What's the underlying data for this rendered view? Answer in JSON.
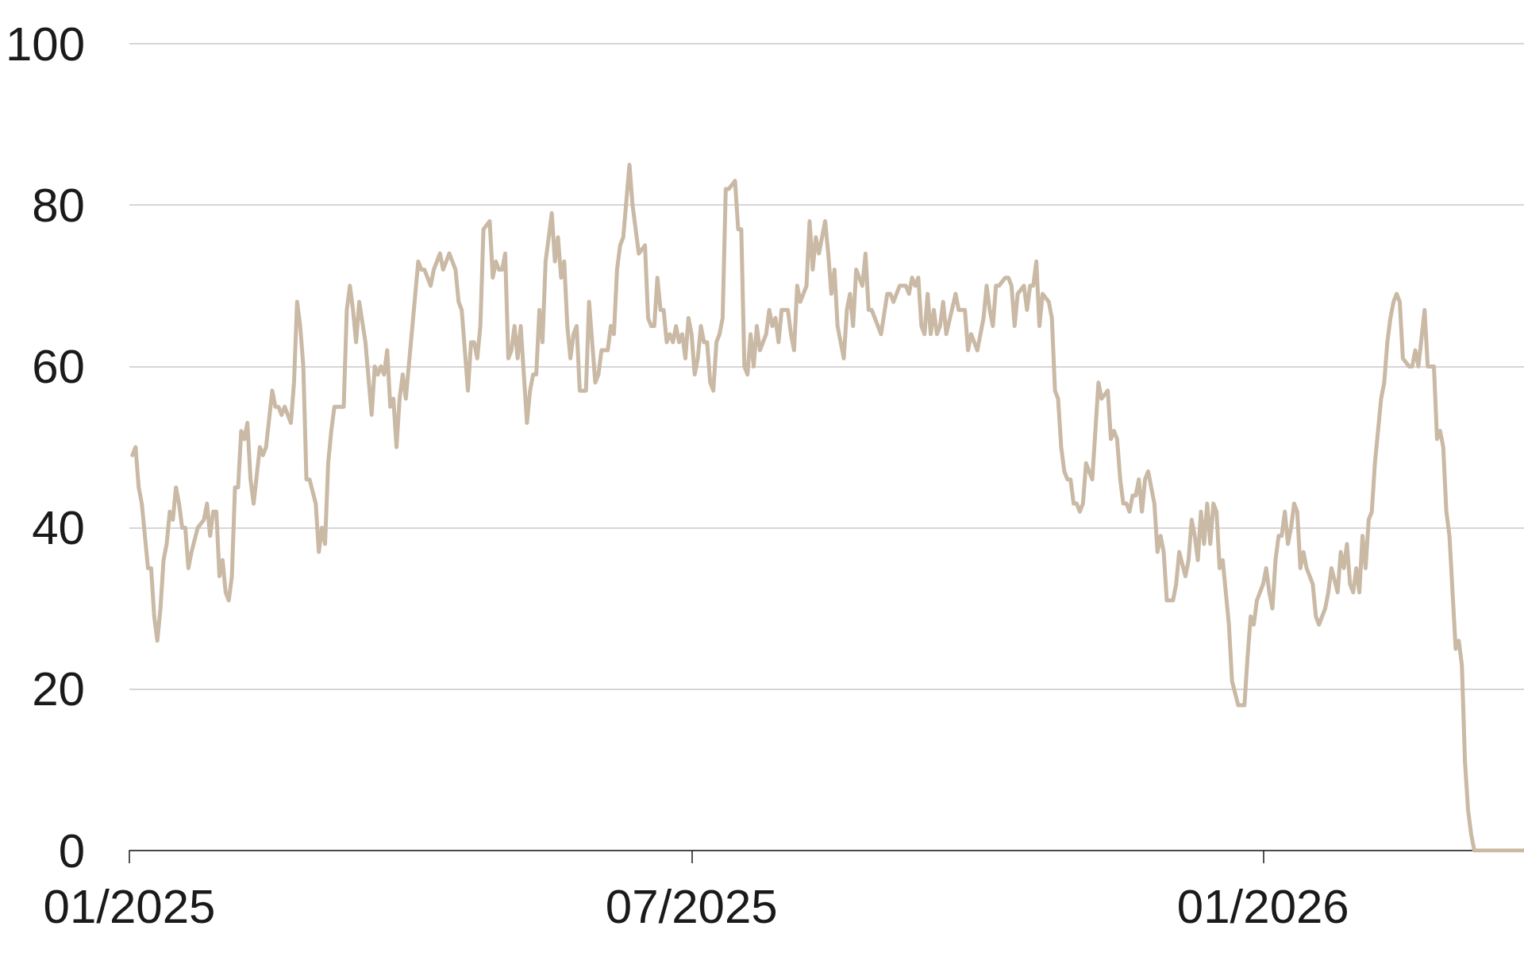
{
  "chart_data": {
    "type": "line",
    "color": "#c9b9a5",
    "x": [
      "2025-01-02",
      "2025-01-03",
      "2025-01-04",
      "2025-01-05",
      "2025-01-07",
      "2025-01-08",
      "2025-01-09",
      "2025-01-10",
      "2025-01-11",
      "2025-01-12",
      "2025-01-13",
      "2025-01-14",
      "2025-01-15",
      "2025-01-16",
      "2025-01-17",
      "2025-01-18",
      "2025-01-19",
      "2025-01-20",
      "2025-01-21",
      "2025-01-23",
      "2025-01-25",
      "2025-01-26",
      "2025-01-27",
      "2025-01-28",
      "2025-01-29",
      "2025-01-30",
      "2025-01-31",
      "2025-02-01",
      "2025-02-02",
      "2025-02-03",
      "2025-02-04",
      "2025-02-05",
      "2025-02-06",
      "2025-02-07",
      "2025-02-08",
      "2025-02-09",
      "2025-02-10",
      "2025-02-12",
      "2025-02-13",
      "2025-02-14",
      "2025-02-16",
      "2025-02-17",
      "2025-02-18",
      "2025-02-19",
      "2025-02-20",
      "2025-02-22",
      "2025-02-23",
      "2025-02-24",
      "2025-02-25",
      "2025-02-26",
      "2025-02-27",
      "2025-02-28",
      "2025-03-02",
      "2025-03-03",
      "2025-03-04",
      "2025-03-05",
      "2025-03-06",
      "2025-03-07",
      "2025-03-08",
      "2025-03-11",
      "2025-03-12",
      "2025-03-13",
      "2025-03-14",
      "2025-03-15",
      "2025-03-16",
      "2025-03-18",
      "2025-03-20",
      "2025-03-21",
      "2025-03-22",
      "2025-03-23",
      "2025-03-24",
      "2025-03-25",
      "2025-03-26",
      "2025-03-27",
      "2025-03-28",
      "2025-03-29",
      "2025-03-30",
      "2025-03-31",
      "2025-04-04",
      "2025-04-05",
      "2025-04-06",
      "2025-04-08",
      "2025-04-09",
      "2025-04-11",
      "2025-04-12",
      "2025-04-14",
      "2025-04-15",
      "2025-04-16",
      "2025-04-17",
      "2025-04-18",
      "2025-04-19",
      "2025-04-20",
      "2025-04-21",
      "2025-04-22",
      "2025-04-23",
      "2025-04-24",
      "2025-04-25",
      "2025-04-27",
      "2025-04-28",
      "2025-04-29",
      "2025-04-30",
      "2025-05-01",
      "2025-05-02",
      "2025-05-03",
      "2025-05-04",
      "2025-05-05",
      "2025-05-06",
      "2025-05-07",
      "2025-05-08",
      "2025-05-09",
      "2025-05-10",
      "2025-05-11",
      "2025-05-12",
      "2025-05-13",
      "2025-05-14",
      "2025-05-15",
      "2025-05-17",
      "2025-05-18",
      "2025-05-19",
      "2025-05-20",
      "2025-05-21",
      "2025-05-22",
      "2025-05-23",
      "2025-05-24",
      "2025-05-25",
      "2025-05-26",
      "2025-05-28",
      "2025-05-29",
      "2025-05-31",
      "2025-06-01",
      "2025-06-02",
      "2025-06-04",
      "2025-06-05",
      "2025-06-06",
      "2025-06-07",
      "2025-06-08",
      "2025-06-09",
      "2025-06-11",
      "2025-06-12",
      "2025-06-13",
      "2025-06-14",
      "2025-06-16",
      "2025-06-17",
      "2025-06-18",
      "2025-06-19",
      "2025-06-20",
      "2025-06-21",
      "2025-06-22",
      "2025-06-23",
      "2025-06-24",
      "2025-06-25",
      "2025-06-26",
      "2025-06-27",
      "2025-06-28",
      "2025-06-29",
      "2025-06-30",
      "2025-07-01",
      "2025-07-02",
      "2025-07-03",
      "2025-07-04",
      "2025-07-05",
      "2025-07-06",
      "2025-07-07",
      "2025-07-08",
      "2025-07-09",
      "2025-07-10",
      "2025-07-11",
      "2025-07-12",
      "2025-07-13",
      "2025-07-15",
      "2025-07-16",
      "2025-07-17",
      "2025-07-18",
      "2025-07-19",
      "2025-07-20",
      "2025-07-21",
      "2025-07-22",
      "2025-07-23",
      "2025-07-25",
      "2025-07-26",
      "2025-07-27",
      "2025-07-28",
      "2025-07-29",
      "2025-07-30",
      "2025-08-01",
      "2025-08-02",
      "2025-08-03",
      "2025-08-04",
      "2025-08-05",
      "2025-08-07",
      "2025-08-08",
      "2025-08-09",
      "2025-08-10",
      "2025-08-11",
      "2025-08-13",
      "2025-08-14",
      "2025-08-15",
      "2025-08-16",
      "2025-08-17",
      "2025-08-19",
      "2025-08-20",
      "2025-08-21",
      "2025-08-22",
      "2025-08-23",
      "2025-08-25",
      "2025-08-26",
      "2025-08-27",
      "2025-08-28",
      "2025-08-31",
      "2025-09-02",
      "2025-09-03",
      "2025-09-04",
      "2025-09-05",
      "2025-09-06",
      "2025-09-08",
      "2025-09-09",
      "2025-09-10",
      "2025-09-11",
      "2025-09-12",
      "2025-09-13",
      "2025-09-14",
      "2025-09-15",
      "2025-09-16",
      "2025-09-17",
      "2025-09-18",
      "2025-09-19",
      "2025-09-20",
      "2025-09-21",
      "2025-09-24",
      "2025-09-25",
      "2025-09-27",
      "2025-09-28",
      "2025-09-29",
      "2025-09-30",
      "2025-10-01",
      "2025-10-03",
      "2025-10-04",
      "2025-10-05",
      "2025-10-06",
      "2025-10-07",
      "2025-10-08",
      "2025-10-10",
      "2025-10-11",
      "2025-10-12",
      "2025-10-13",
      "2025-10-14",
      "2025-10-16",
      "2025-10-17",
      "2025-10-18",
      "2025-10-19",
      "2025-10-20",
      "2025-10-21",
      "2025-10-22",
      "2025-10-24",
      "2025-10-25",
      "2025-10-26",
      "2025-10-27",
      "2025-10-28",
      "2025-10-29",
      "2025-10-30",
      "2025-10-31",
      "2025-11-01",
      "2025-11-02",
      "2025-11-03",
      "2025-11-04",
      "2025-11-05",
      "2025-11-06",
      "2025-11-07",
      "2025-11-09",
      "2025-11-10",
      "2025-11-12",
      "2025-11-13",
      "2025-11-14",
      "2025-11-15",
      "2025-11-16",
      "2025-11-17",
      "2025-11-18",
      "2025-11-19",
      "2025-11-20",
      "2025-11-21",
      "2025-11-22",
      "2025-11-23",
      "2025-11-24",
      "2025-11-25",
      "2025-11-27",
      "2025-11-28",
      "2025-11-29",
      "2025-11-30",
      "2025-12-01",
      "2025-12-03",
      "2025-12-04",
      "2025-12-05",
      "2025-12-07",
      "2025-12-08",
      "2025-12-09",
      "2025-12-10",
      "2025-12-11",
      "2025-12-12",
      "2025-12-13",
      "2025-12-14",
      "2025-12-15",
      "2025-12-16",
      "2025-12-17",
      "2025-12-18",
      "2025-12-19",
      "2025-12-21",
      "2025-12-22",
      "2025-12-24",
      "2025-12-26",
      "2025-12-27",
      "2025-12-28",
      "2025-12-29",
      "2025-12-30",
      "2026-01-01",
      "2026-01-02",
      "2026-01-03",
      "2026-01-04",
      "2026-01-05",
      "2026-01-06",
      "2026-01-07",
      "2026-01-08",
      "2026-01-09",
      "2026-01-10",
      "2026-01-11",
      "2026-01-12",
      "2026-01-13",
      "2026-01-14",
      "2026-01-15",
      "2026-01-17",
      "2026-01-18",
      "2026-01-19",
      "2026-01-21",
      "2026-01-22",
      "2026-01-23",
      "2026-01-25",
      "2026-01-26",
      "2026-01-27",
      "2026-01-28",
      "2026-01-29",
      "2026-01-30",
      "2026-01-31",
      "2026-02-01",
      "2026-02-02",
      "2026-02-03",
      "2026-02-04",
      "2026-02-05",
      "2026-02-06",
      "2026-02-08",
      "2026-02-09",
      "2026-02-10",
      "2026-02-11",
      "2026-02-12",
      "2026-02-13",
      "2026-02-14",
      "2026-02-15",
      "2026-02-17",
      "2026-02-18",
      "2026-02-19",
      "2026-02-20",
      "2026-02-22",
      "2026-02-23",
      "2026-02-25",
      "2026-02-26",
      "2026-02-27",
      "2026-02-28",
      "2026-03-01",
      "2026-03-02",
      "2026-03-04",
      "2026-03-05",
      "2026-03-06",
      "2026-03-07",
      "2026-03-08",
      "2026-03-09",
      "2026-03-10",
      "2026-03-26"
    ],
    "values": [
      49,
      50,
      45,
      43,
      35,
      35,
      29,
      26,
      30,
      36,
      38,
      42,
      41,
      45,
      43,
      40,
      40,
      35,
      37,
      40,
      41,
      43,
      39,
      42,
      42,
      34,
      36,
      32,
      31,
      34,
      45,
      45,
      52,
      51,
      53,
      46,
      43,
      50,
      49,
      50,
      57,
      55,
      55,
      54,
      55,
      53,
      58,
      68,
      65,
      60,
      46,
      46,
      43,
      37,
      40,
      38,
      48,
      52,
      55,
      55,
      67,
      70,
      67,
      63,
      68,
      63,
      54,
      60,
      59,
      60,
      59,
      62,
      55,
      56,
      50,
      56,
      59,
      56,
      73,
      72,
      72,
      70,
      72,
      74,
      72,
      74,
      73,
      72,
      68,
      67,
      62,
      57,
      63,
      63,
      61,
      65,
      77,
      78,
      71,
      73,
      72,
      72,
      74,
      61,
      62,
      65,
      61,
      65,
      59,
      53,
      57,
      59,
      59,
      67,
      63,
      73,
      79,
      73,
      76,
      71,
      73,
      65,
      61,
      64,
      65,
      57,
      57,
      68,
      58,
      59,
      62,
      62,
      65,
      64,
      72,
      75,
      76,
      85,
      80,
      77,
      74,
      75,
      66,
      65,
      65,
      71,
      67,
      67,
      63,
      64,
      63,
      65,
      63,
      64,
      61,
      66,
      64,
      59,
      61,
      65,
      63,
      63,
      58,
      57,
      63,
      64,
      66,
      82,
      82,
      83,
      77,
      77,
      60,
      59,
      64,
      60,
      65,
      62,
      64,
      67,
      65,
      66,
      63,
      67,
      67,
      64,
      62,
      70,
      68,
      70,
      78,
      72,
      76,
      74,
      78,
      74,
      69,
      72,
      65,
      61,
      67,
      69,
      65,
      72,
      70,
      74,
      67,
      67,
      64,
      69,
      69,
      68,
      69,
      70,
      70,
      69,
      71,
      70,
      71,
      65,
      64,
      69,
      64,
      67,
      64,
      65,
      68,
      64,
      69,
      67,
      67,
      62,
      64,
      63,
      62,
      66,
      70,
      67,
      65,
      70,
      70,
      71,
      71,
      70,
      65,
      69,
      70,
      67,
      70,
      70,
      73,
      65,
      69,
      68,
      66,
      57,
      56,
      50,
      47,
      46,
      46,
      43,
      43,
      42,
      43,
      48,
      47,
      46,
      58,
      56,
      57,
      51,
      52,
      51,
      46,
      43,
      43,
      42,
      44,
      44,
      46,
      42,
      46,
      47,
      43,
      37,
      39,
      37,
      31,
      31,
      33,
      37,
      34,
      36,
      41,
      39,
      36,
      42,
      38,
      43,
      38,
      43,
      42,
      35,
      36,
      28,
      21,
      18,
      18,
      24,
      29,
      28,
      31,
      33,
      35,
      32,
      30,
      36,
      39,
      39,
      42,
      38,
      40,
      43,
      42,
      35,
      37,
      35,
      33,
      29,
      28,
      30,
      32,
      35,
      32,
      37,
      35,
      38,
      33,
      32,
      35,
      32,
      39,
      35,
      41,
      42,
      48,
      56,
      58,
      63,
      66,
      68,
      69,
      68,
      61,
      60,
      60,
      62,
      60,
      67,
      60,
      60,
      51,
      52,
      50,
      42,
      39,
      25,
      26,
      23,
      11,
      5,
      2,
      0,
      0
    ],
    "xlim": [
      "2025-01-01",
      "2026-03-26"
    ],
    "xticks": [
      {
        "value": "2025-01-01",
        "label": "01/2025"
      },
      {
        "value": "2025-07-01",
        "label": "07/2025"
      },
      {
        "value": "2026-01-01",
        "label": "01/2026"
      }
    ],
    "ylim": [
      0,
      100
    ],
    "yticks": [
      0,
      20,
      40,
      60,
      80,
      100
    ],
    "grid": "y"
  }
}
